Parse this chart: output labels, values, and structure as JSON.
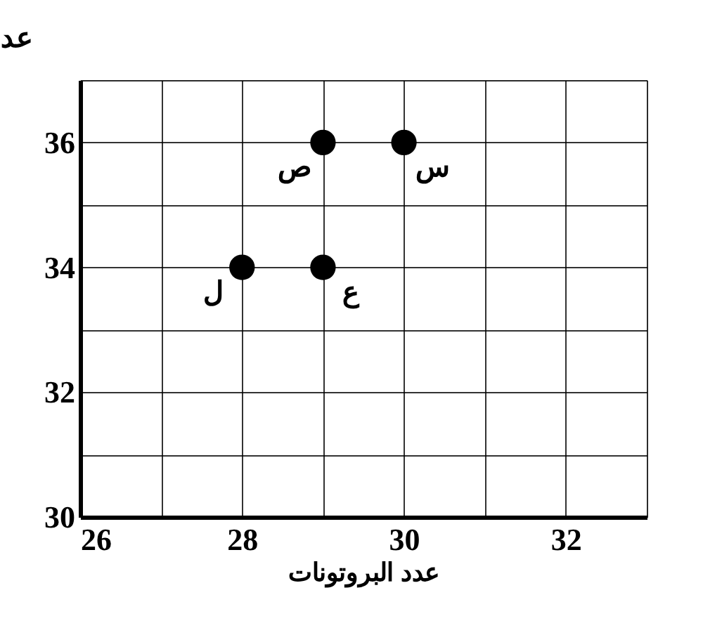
{
  "chart_data": {
    "type": "scatter",
    "xlabel": "عدد البروتونات",
    "ylabel": "عد",
    "x": [
      29,
      30,
      28,
      29
    ],
    "series": [
      {
        "color": "#000000",
        "values": [
          36,
          36,
          34,
          34
        ]
      }
    ],
    "marker": "circle",
    "annotations": [
      {
        "text": "ص",
        "x": 29,
        "y": 36
      },
      {
        "text": "س",
        "x": 30,
        "y": 36
      },
      {
        "text": "ل",
        "x": 28,
        "y": 34
      },
      {
        "text": "ع",
        "x": 29,
        "y": 34
      }
    ],
    "xlim": [
      26,
      33
    ],
    "ylim": [
      30,
      37
    ],
    "xticks": [
      26,
      {
        "value": 27,
        "label": null
      },
      28,
      {
        "value": 29,
        "label": null
      },
      30,
      {
        "value": 31,
        "label": null
      },
      32,
      {
        "value": 33,
        "label": null
      }
    ],
    "yticks": [
      30,
      {
        "value": 31,
        "label": null
      },
      32,
      {
        "value": 33,
        "label": null
      },
      34,
      {
        "value": 35,
        "label": null
      },
      36,
      {
        "value": 37,
        "label": null
      }
    ],
    "grid": true
  }
}
